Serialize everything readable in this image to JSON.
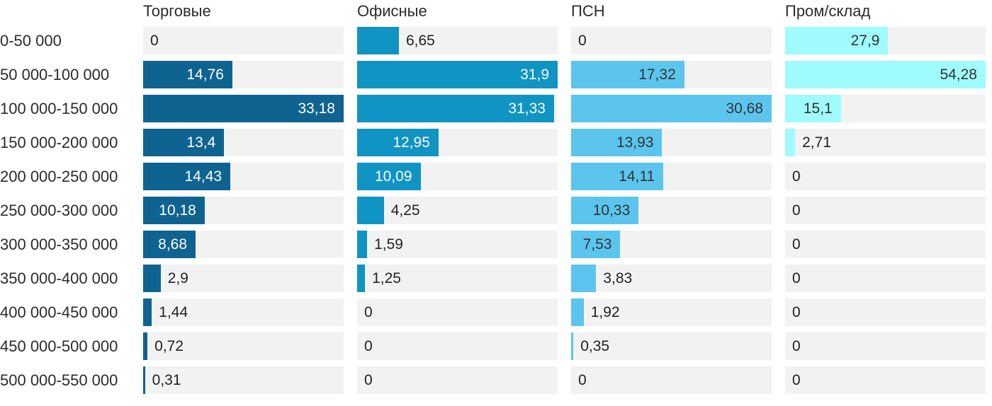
{
  "chart_data": {
    "type": "bar",
    "orientation": "horizontal",
    "title": "",
    "xlabel": "",
    "ylabel": "",
    "grid": false,
    "legend_position": "column-headers-top",
    "scaling": "each column scaled independently to its own max value",
    "value_decimal_separator": ",",
    "track_color": "#f2f2f2",
    "background_color": "#ffffff",
    "text_color": "#2b2b2b",
    "outside_label_color": "#222222",
    "categories": [
      "0-50 000",
      "50 000-100 000",
      "100 000-150 000",
      "150 000-200 000",
      "200 000-250 000",
      "250 000-300 000",
      "300 000-350 000",
      "350 000-400 000",
      "400 000-450 000",
      "450 000-500 000",
      "500 000-550 000"
    ],
    "series": [
      {
        "name": "Торговые",
        "color": "#0f6391",
        "inside_label_color": "#ffffff",
        "max": 33.18,
        "values": [
          0,
          14.76,
          33.18,
          13.4,
          14.43,
          10.18,
          8.68,
          2.9,
          1.44,
          0.72,
          0.31
        ]
      },
      {
        "name": "Офисные",
        "color": "#1094c4",
        "inside_label_color": "#ffffff",
        "max": 31.9,
        "values": [
          6.65,
          31.9,
          31.33,
          12.95,
          10.09,
          4.25,
          1.59,
          1.25,
          0,
          0,
          0
        ]
      },
      {
        "name": "ПСН",
        "color": "#5bc5ee",
        "inside_label_color": "#333333",
        "max": 30.68,
        "values": [
          0,
          17.32,
          30.68,
          13.93,
          14.11,
          10.33,
          7.53,
          3.83,
          1.92,
          0.35,
          0
        ]
      },
      {
        "name": "Пром/склад",
        "color": "#a0fbfc",
        "inside_label_color": "#333333",
        "max": 54.28,
        "values": [
          27.9,
          54.28,
          15.1,
          2.71,
          0,
          0,
          0,
          0,
          0,
          0,
          0
        ]
      }
    ]
  }
}
